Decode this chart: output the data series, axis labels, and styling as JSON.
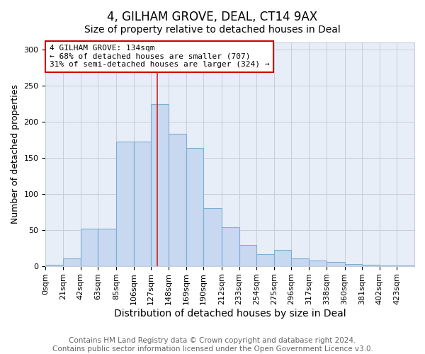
{
  "title": "4, GILHAM GROVE, DEAL, CT14 9AX",
  "subtitle": "Size of property relative to detached houses in Deal",
  "xlabel": "Distribution of detached houses by size in Deal",
  "ylabel": "Number of detached properties",
  "bin_labels": [
    "0sqm",
    "21sqm",
    "42sqm",
    "63sqm",
    "85sqm",
    "106sqm",
    "127sqm",
    "148sqm",
    "169sqm",
    "190sqm",
    "212sqm",
    "233sqm",
    "254sqm",
    "275sqm",
    "296sqm",
    "317sqm",
    "338sqm",
    "360sqm",
    "381sqm",
    "402sqm",
    "423sqm"
  ],
  "bin_edges": [
    0,
    21,
    42,
    63,
    85,
    106,
    127,
    148,
    169,
    190,
    212,
    233,
    254,
    275,
    296,
    317,
    338,
    360,
    381,
    402,
    423
  ],
  "bar_heights": [
    2,
    11,
    52,
    52,
    173,
    173,
    225,
    183,
    164,
    80,
    54,
    29,
    16,
    22,
    11,
    8,
    6,
    3,
    2,
    1,
    1
  ],
  "bar_color": "#c8d8f0",
  "bar_edge_color": "#7bafd4",
  "grid_color": "#c8cdd8",
  "background_color": "#e8eef8",
  "fig_background_color": "#ffffff",
  "property_size": 134,
  "red_line_color": "#cc2222",
  "annotation_text": "4 GILHAM GROVE: 134sqm\n← 68% of detached houses are smaller (707)\n31% of semi-detached houses are larger (324) →",
  "annotation_box_color": "#ffffff",
  "annotation_box_edge_color": "#cc0000",
  "ylim": [
    0,
    310
  ],
  "yticks": [
    0,
    50,
    100,
    150,
    200,
    250,
    300
  ],
  "footer_text": "Contains HM Land Registry data © Crown copyright and database right 2024.\nContains public sector information licensed under the Open Government Licence v3.0.",
  "title_fontsize": 12,
  "subtitle_fontsize": 10,
  "xlabel_fontsize": 10,
  "ylabel_fontsize": 9,
  "tick_fontsize": 8,
  "footer_fontsize": 7.5
}
